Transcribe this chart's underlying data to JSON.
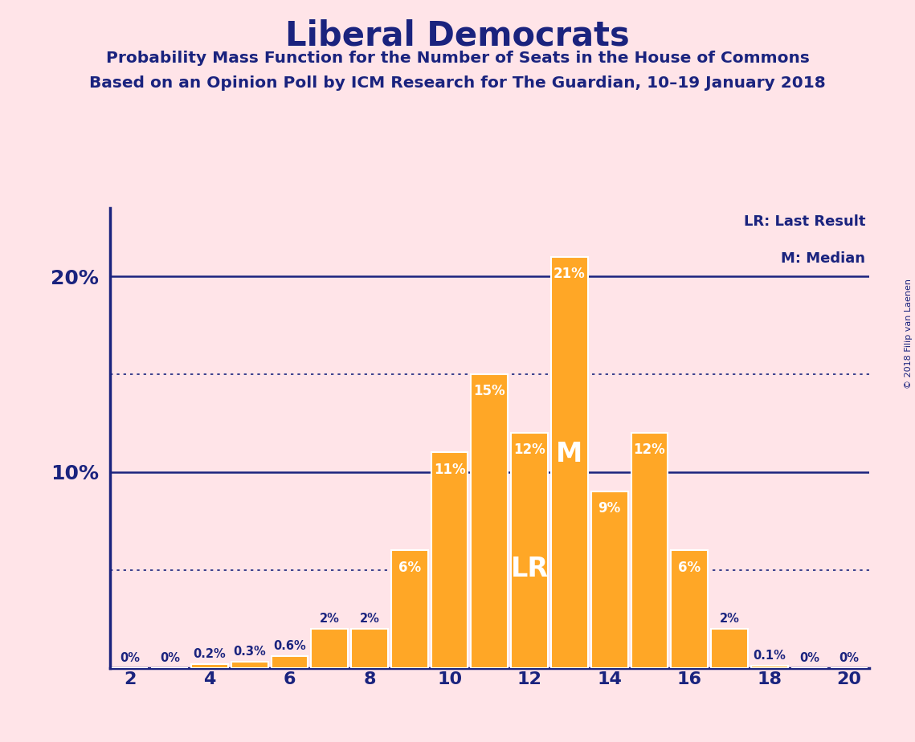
{
  "title": "Liberal Democrats",
  "subtitle1": "Probability Mass Function for the Number of Seats in the House of Commons",
  "subtitle2": "Based on an Opinion Poll by ICM Research for The Guardian, 10–19 January 2018",
  "copyright": "© 2018 Filip van Laenen",
  "seats": [
    2,
    3,
    4,
    5,
    6,
    7,
    8,
    9,
    10,
    11,
    12,
    13,
    14,
    15,
    16,
    17,
    18,
    19,
    20
  ],
  "values": [
    0.0,
    0.0,
    0.2,
    0.3,
    0.6,
    2.0,
    2.0,
    6.0,
    11.0,
    15.0,
    12.0,
    21.0,
    9.0,
    12.0,
    6.0,
    2.0,
    0.1,
    0.0,
    0.0
  ],
  "labels": [
    "0%",
    "0%",
    "0.2%",
    "0.3%",
    "0.6%",
    "2%",
    "2%",
    "6%",
    "11%",
    "15%",
    "12%",
    "21%",
    "9%",
    "12%",
    "6%",
    "2%",
    "0.1%",
    "0%",
    "0%"
  ],
  "bar_color": "#FFA726",
  "background_color": "#FFE4E8",
  "text_color": "#1a237e",
  "title_color": "#1a237e",
  "bar_label_color_outside": "#1a237e",
  "bar_label_color_inside": "#ffffff",
  "lr_seat": 12,
  "median_seat": 13,
  "lr_label": "LR",
  "median_label": "M",
  "legend_lr": "LR: Last Result",
  "legend_m": "M: Median",
  "xlim": [
    1.5,
    20.5
  ],
  "ylim": [
    0,
    23.5
  ],
  "xticks": [
    2,
    4,
    6,
    8,
    10,
    12,
    14,
    16,
    18,
    20
  ],
  "solid_lines": [
    10.0,
    20.0
  ],
  "dotted_lines": [
    5.0,
    15.0
  ],
  "solid_line_color": "#1a237e",
  "dotted_line_color": "#1a237e",
  "bar_width": 0.92
}
